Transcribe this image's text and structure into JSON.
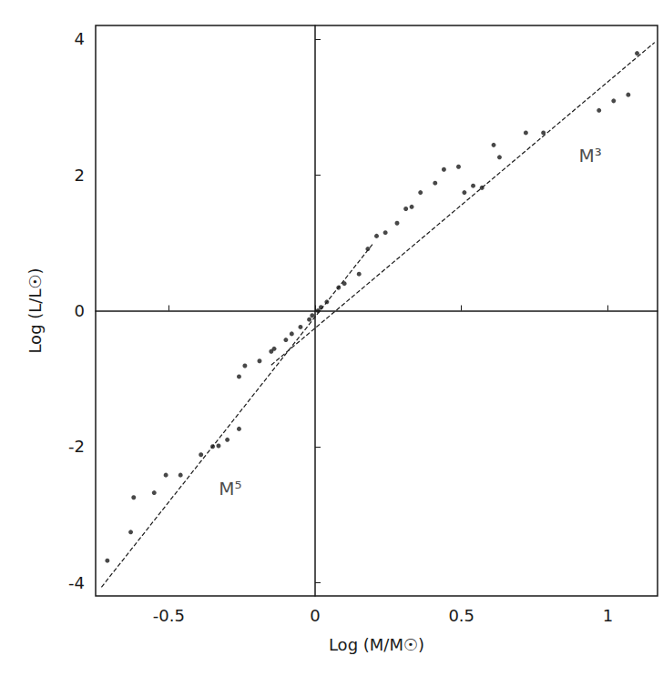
{
  "chart_data": {
    "type": "scatter",
    "x_label": "Log (M/M☉)",
    "y_label": "Log (L/L☉)",
    "xlim": [
      -0.75,
      1.17
    ],
    "xticks": [
      -0.5,
      0,
      0.5,
      1
    ],
    "ylim": [
      -4.2,
      4.2
    ],
    "yticks": [
      -4,
      -2,
      0,
      2,
      4
    ],
    "grid": false,
    "color": "#1a1a1a",
    "series": [
      {
        "type": "scatter",
        "marker": "circle",
        "color": "#1a1a1a",
        "x": [
          -0.71,
          -0.63,
          -0.62,
          -0.55,
          -0.51,
          -0.46,
          -0.39,
          -0.35,
          -0.33,
          -0.3,
          -0.26,
          -0.26,
          -0.24,
          -0.19,
          -0.15,
          -0.14,
          -0.1,
          -0.08,
          -0.05,
          -0.02,
          -0.01,
          0.01,
          0.02,
          0.04,
          0.08,
          0.1,
          0.15,
          0.18,
          0.21,
          0.24,
          0.28,
          0.31,
          0.33,
          0.36,
          0.41,
          0.44,
          0.49,
          0.51,
          0.54,
          0.57,
          0.61,
          0.63,
          0.72,
          0.78,
          0.97,
          1.02,
          1.07,
          1.1
        ],
        "values": [
          -3.68,
          -3.26,
          -2.75,
          -2.68,
          -2.42,
          -2.42,
          -2.12,
          -2.0,
          -1.99,
          -1.9,
          -1.74,
          -0.97,
          -0.81,
          -0.74,
          -0.6,
          -0.56,
          -0.43,
          -0.34,
          -0.24,
          -0.13,
          -0.07,
          0.0,
          0.05,
          0.13,
          0.34,
          0.4,
          0.54,
          0.91,
          1.1,
          1.15,
          1.29,
          1.5,
          1.53,
          1.74,
          1.88,
          2.08,
          2.12,
          1.74,
          1.84,
          1.81,
          2.44,
          2.26,
          2.62,
          2.62,
          2.95,
          3.09,
          3.18,
          3.79
        ]
      },
      {
        "type": "line",
        "line_style": "dashed",
        "color": "#1a1a1a",
        "x": [
          -0.73,
          0.2
        ],
        "values": [
          -4.07,
          1.0
        ]
      },
      {
        "type": "line",
        "line_style": "dashed",
        "color": "#1a1a1a",
        "x": [
          -0.15,
          1.16
        ],
        "values": [
          -0.8,
          3.95
        ]
      }
    ],
    "annotations": [
      {
        "text": "M³",
        "x": 0.94,
        "y": 2.28
      },
      {
        "text": "M⁵",
        "x": -0.29,
        "y": -2.62
      }
    ]
  }
}
